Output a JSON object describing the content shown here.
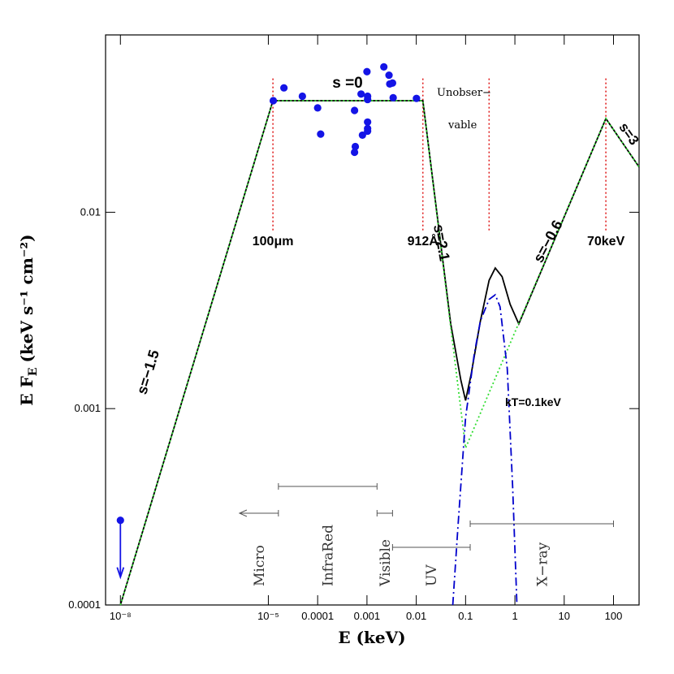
{
  "chart_data": {
    "type": "line",
    "xlabel": "E (keV)",
    "ylabel": {
      "text": "E F",
      "sub": "E",
      "unit": "(keV s⁻¹ cm⁻²)"
    },
    "xscale": "log",
    "yscale": "log",
    "xlim": [
      5e-09,
      330
    ],
    "ylim": [
      0.0001,
      0.08
    ],
    "xticks": [
      {
        "value": 1e-08,
        "label": "10⁻⁸"
      },
      {
        "value": 1e-05,
        "label": "10⁻⁵"
      },
      0.0001,
      0.001,
      0.01,
      0.1,
      1,
      10,
      100
    ],
    "yticks": [
      0.0001,
      0.001,
      0.01
    ],
    "curves": [
      {
        "style": "solid",
        "color": "#000000",
        "x": [
          1e-08,
          1.24e-05,
          0.0136,
          0.05,
          0.08,
          0.1,
          0.13,
          0.2,
          0.3,
          0.4,
          0.55,
          0.8,
          1.2,
          70,
          330
        ],
        "y": [
          0.0001,
          0.037,
          0.037,
          0.0027,
          0.0014,
          0.0011,
          0.0015,
          0.0028,
          0.0045,
          0.0052,
          0.0047,
          0.0034,
          0.0027,
          0.03,
          0.017
        ]
      },
      {
        "style": "dotted",
        "color": "#33dd33",
        "x": [
          1e-08,
          1.24e-05,
          0.0136,
          0.1,
          70,
          330
        ],
        "y": [
          0.0001,
          0.037,
          0.037,
          0.00063,
          0.03,
          0.017
        ]
      },
      {
        "style": "dashdot",
        "color": "#0000cc",
        "x": [
          0.055,
          0.07,
          0.1,
          0.15,
          0.2,
          0.3,
          0.4,
          0.5,
          0.7,
          0.9,
          1.1
        ],
        "y": [
          0.0001,
          0.00025,
          0.0009,
          0.0019,
          0.0028,
          0.0036,
          0.0038,
          0.0033,
          0.0016,
          0.0004,
          0.0001
        ]
      }
    ],
    "points": {
      "color": "#1414e6",
      "x": [
        1.26e-05,
        2.07e-05,
        4.9e-05,
        0.0001,
        0.000115,
        0.00056,
        0.00058,
        0.00056,
        0.00076,
        0.00081,
        0.001,
        0.00103,
        0.00103,
        0.00103,
        0.00103,
        0.00103,
        0.0022,
        0.0028,
        0.0029,
        0.0033,
        0.0034,
        0.0101
      ],
      "y": [
        0.037,
        0.043,
        0.039,
        0.034,
        0.025,
        0.033,
        0.0216,
        0.0202,
        0.04,
        0.0247,
        0.052,
        0.0288,
        0.0267,
        0.0259,
        0.039,
        0.0375,
        0.055,
        0.0499,
        0.045,
        0.0455,
        0.0383,
        0.038
      ]
    },
    "upper_limit": {
      "x": 1e-08,
      "y": 0.00027,
      "color": "#1414e6"
    },
    "vlines": {
      "color": "#e02020",
      "ylim": [
        0.0079,
        0.048
      ],
      "x": [
        1.24e-05,
        0.0136,
        0.3,
        70
      ],
      "labels": [
        "100μm",
        "912Å",
        null,
        "70keV"
      ]
    },
    "annotations": {
      "flat": "s =0",
      "radio": "s=−1.5",
      "uv": "s=2.1",
      "xray": "s=−0.6",
      "hard": "s=3",
      "bb": "kT=0.1keV",
      "unobs1": "Unobser−",
      "unobs2": "vable"
    },
    "bands": [
      {
        "label": "Micro",
        "range": [
          2.6e-06,
          1.6e-05
        ]
      },
      {
        "label": "InfraRed",
        "range": [
          1.6e-05,
          0.0016
        ]
      },
      {
        "label": "Visible",
        "range": [
          0.0016,
          0.0033
        ]
      },
      {
        "label": "UV",
        "range": [
          0.0033,
          0.124
        ]
      },
      {
        "label": "X−ray",
        "range": [
          0.124,
          100
        ]
      }
    ]
  }
}
